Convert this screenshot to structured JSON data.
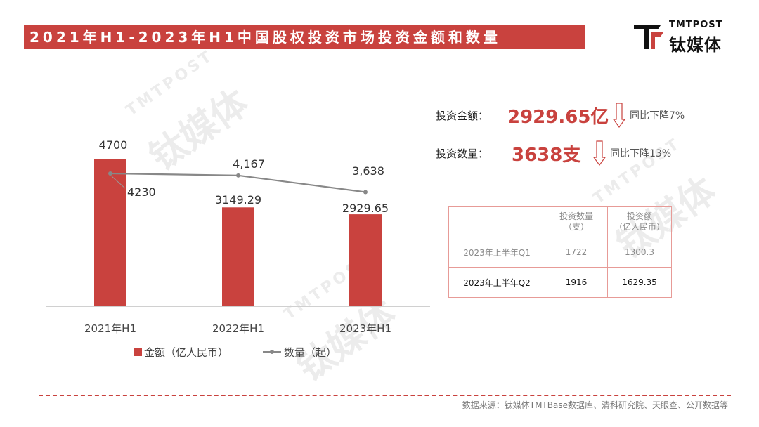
{
  "header": {
    "title": "2021年H1-2023年H1中国股权投资市场投资金额和数量"
  },
  "logo": {
    "en": "TMTPOST",
    "cn": "钛媒体"
  },
  "watermark": {
    "en": "TMTPOST",
    "cn": "钛媒体"
  },
  "kpis": {
    "amount": {
      "label": "投资金额：",
      "value": "2929.65亿",
      "change": "同比下降7%"
    },
    "count": {
      "label": "投资数量：",
      "value": "3638支",
      "change": "同比下降13%"
    }
  },
  "table": {
    "headers": [
      "",
      "投资数量\n（支）",
      "投资额\n（亿人民币）"
    ],
    "rows": [
      [
        "2023年上半年Q1",
        "1722",
        "1300.3"
      ],
      [
        "2023年上半年Q2",
        "1916",
        "1629.35"
      ]
    ]
  },
  "footer": {
    "source": "数据来源：钛媒体TMTBase数据库、清科研究院、天眼查、公开数据等"
  },
  "colors": {
    "accent": "#c9423e",
    "line": "#888888"
  },
  "chart_data": {
    "type": "bar",
    "categories": [
      "2021年H1",
      "2022年H1",
      "2023年H1"
    ],
    "series": [
      {
        "name": "金额（亿人民币）",
        "type": "bar",
        "values": [
          4700,
          3149.29,
          2929.65
        ],
        "labels": [
          "4700",
          "3149.29",
          "2929.65"
        ]
      },
      {
        "name": "数量（起）",
        "type": "line",
        "values": [
          4230,
          4167,
          3638
        ],
        "labels": [
          "4230",
          "4,167",
          "3,638"
        ]
      }
    ],
    "ylim": [
      0,
      4700
    ],
    "grid": false,
    "legend": "bottom"
  }
}
